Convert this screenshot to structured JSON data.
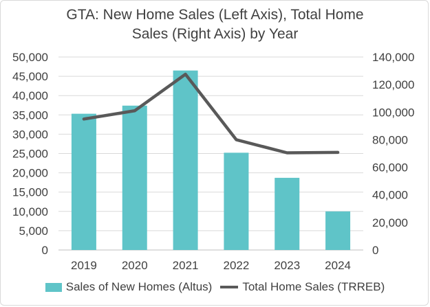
{
  "chart_data": {
    "type": "bar+line",
    "title_line1": "GTA: New Home Sales (Left Axis), Total Home",
    "title_line2": "Sales (Right Axis) by Year",
    "categories": [
      "2019",
      "2020",
      "2021",
      "2022",
      "2023",
      "2024"
    ],
    "series": [
      {
        "name": "Sales of New Homes (Altus)",
        "kind": "bar",
        "axis": "left",
        "color": "#5fc4c8",
        "values": [
          35300,
          37400,
          46500,
          25200,
          18700,
          10000
        ]
      },
      {
        "name": "Total Home Sales (TRREB)",
        "kind": "line",
        "axis": "right",
        "color": "#595959",
        "values": [
          95000,
          101000,
          127500,
          80000,
          70500,
          70800
        ]
      }
    ],
    "left_axis": {
      "min": 0,
      "max": 50000,
      "step": 5000,
      "tick_labels": [
        "0",
        "5,000",
        "10,000",
        "15,000",
        "20,000",
        "25,000",
        "30,000",
        "35,000",
        "40,000",
        "45,000",
        "50,000"
      ]
    },
    "right_axis": {
      "min": 0,
      "max": 140000,
      "step": 20000,
      "tick_labels": [
        "0",
        "20,000",
        "40,000",
        "60,000",
        "80,000",
        "100,000",
        "120,000",
        "140,000"
      ]
    },
    "grid": true,
    "legend_position": "bottom"
  }
}
